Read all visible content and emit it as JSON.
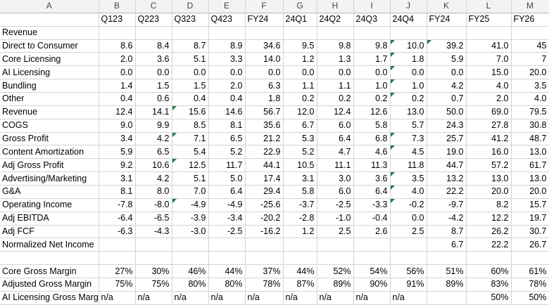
{
  "column_letters": [
    "A",
    "B",
    "C",
    "D",
    "E",
    "F",
    "G",
    "H",
    "I",
    "J",
    "K",
    "L",
    "M"
  ],
  "headers": [
    "",
    "Q123",
    "Q223",
    "Q323",
    "Q423",
    "FY24",
    "24Q1",
    "24Q2",
    "24Q3",
    "24Q4",
    "FY24",
    "FY25",
    "FY26"
  ],
  "rows": [
    {
      "label": "Revenue",
      "values": [
        "",
        "",
        "",
        "",
        "",
        "",
        "",
        "",
        "",
        "",
        "",
        ""
      ]
    },
    {
      "label": "Direct to Consumer",
      "values": [
        "8.6",
        "8.4",
        "8.7",
        "8.9",
        "34.6",
        "9.5",
        "9.8",
        "9.8",
        "10.0",
        "39.2",
        "41.0",
        "45"
      ]
    },
    {
      "label": "Core Licensing",
      "values": [
        "2.0",
        "3.6",
        "5.1",
        "3.3",
        "14.0",
        "1.2",
        "1.3",
        "1.7",
        "1.8",
        "5.9",
        "7.0",
        "7"
      ]
    },
    {
      "label": "AI Licensing",
      "values": [
        "0.0",
        "0.0",
        "0.0",
        "0.0",
        "0.0",
        "0.0",
        "0.0",
        "0.0",
        "0.0",
        "0.0",
        "15.0",
        "20.0"
      ]
    },
    {
      "label": "Bundling",
      "values": [
        "1.4",
        "1.5",
        "1.5",
        "2.0",
        "6.3",
        "1.1",
        "1.1",
        "1.0",
        "1.0",
        "4.2",
        "4.0",
        "3.5"
      ]
    },
    {
      "label": "Other",
      "values": [
        "0.4",
        "0.6",
        "0.4",
        "0.4",
        "1.8",
        "0.2",
        "0.2",
        "0.2",
        "0.2",
        "0.7",
        "2.0",
        "4.0"
      ]
    },
    {
      "label": "Revenue",
      "values": [
        "12.4",
        "14.1",
        "15.6",
        "14.6",
        "56.7",
        "12.0",
        "12.4",
        "12.6",
        "13.0",
        "50.0",
        "69.0",
        "79.5"
      ]
    },
    {
      "label": "COGS",
      "values": [
        "9.0",
        "9.9",
        "8.5",
        "8.1",
        "35.6",
        "6.7",
        "6.0",
        "5.8",
        "5.7",
        "24.3",
        "27.8",
        "30.8"
      ]
    },
    {
      "label": "Gross Profit",
      "values": [
        "3.4",
        "4.2",
        "7.1",
        "6.5",
        "21.2",
        "5.3",
        "6.4",
        "6.8",
        "7.3",
        "25.7",
        "41.2",
        "48.7"
      ]
    },
    {
      "label": "Content Amortization",
      "values": [
        "5.9",
        "6.5",
        "5.4",
        "5.2",
        "22.9",
        "5.2",
        "4.7",
        "4.6",
        "4.5",
        "19.0",
        "16.0",
        "13.0"
      ]
    },
    {
      "label": "Adj Gross Profit",
      "values": [
        "9.2",
        "10.6",
        "12.5",
        "11.7",
        "44.1",
        "10.5",
        "11.1",
        "11.3",
        "11.8",
        "44.7",
        "57.2",
        "61.7"
      ]
    },
    {
      "label": "Advertising/Marketing",
      "values": [
        "3.1",
        "4.2",
        "5.1",
        "5.0",
        "17.4",
        "3.1",
        "3.0",
        "3.6",
        "3.5",
        "13.2",
        "13.0",
        "13.0"
      ]
    },
    {
      "label": "G&A",
      "values": [
        "8.1",
        "8.0",
        "7.0",
        "6.4",
        "29.4",
        "5.8",
        "6.0",
        "6.4",
        "4.0",
        "22.2",
        "20.0",
        "20.0"
      ]
    },
    {
      "label": "Operating Income",
      "values": [
        "-7.8",
        "-8.0",
        "-4.9",
        "-4.9",
        "-25.6",
        "-3.7",
        "-2.5",
        "-3.3",
        "-0.2",
        "-9.7",
        "8.2",
        "15.7"
      ]
    },
    {
      "label": "Adj EBITDA",
      "values": [
        "-6.4",
        "-6.5",
        "-3.9",
        "-3.4",
        "-20.2",
        "-2.8",
        "-1.0",
        "-0.4",
        "0.0",
        "-4.2",
        "12.2",
        "19.7"
      ]
    },
    {
      "label": "Adj FCF",
      "values": [
        "-6.3",
        "-4.3",
        "-3.0",
        "-2.5",
        "-16.2",
        "1.2",
        "2.5",
        "2.6",
        "2.5",
        "8.7",
        "26.2",
        "30.7"
      ]
    },
    {
      "label": "Normalized Net Income",
      "values": [
        "",
        "",
        "",
        "",
        "",
        "",
        "",
        "",
        "",
        "6.7",
        "22.2",
        "26.7"
      ]
    },
    {
      "label": "",
      "values": [
        "",
        "",
        "",
        "",
        "",
        "",
        "",
        "",
        "",
        "",
        "",
        ""
      ]
    },
    {
      "label": "Core Gross Margin",
      "values": [
        "27%",
        "30%",
        "46%",
        "44%",
        "37%",
        "44%",
        "52%",
        "54%",
        "56%",
        "51%",
        "60%",
        "61%"
      ]
    },
    {
      "label": "Adjusted Gross Margin",
      "values": [
        "75%",
        "75%",
        "80%",
        "80%",
        "78%",
        "87%",
        "89%",
        "90%",
        "91%",
        "89%",
        "83%",
        "78%"
      ]
    },
    {
      "label": "AI Licensing Gross Marg",
      "values": [
        "n/a",
        "n/a",
        "n/a",
        "n/a",
        "n/a",
        "n/a",
        "n/a",
        "n/a",
        "n/a",
        "",
        "50%",
        "50%"
      ]
    }
  ],
  "colors": {
    "header_bg": "#f3f3f3",
    "gridline": "#d4d4d4",
    "error_indicator": "#1f7a3a"
  }
}
